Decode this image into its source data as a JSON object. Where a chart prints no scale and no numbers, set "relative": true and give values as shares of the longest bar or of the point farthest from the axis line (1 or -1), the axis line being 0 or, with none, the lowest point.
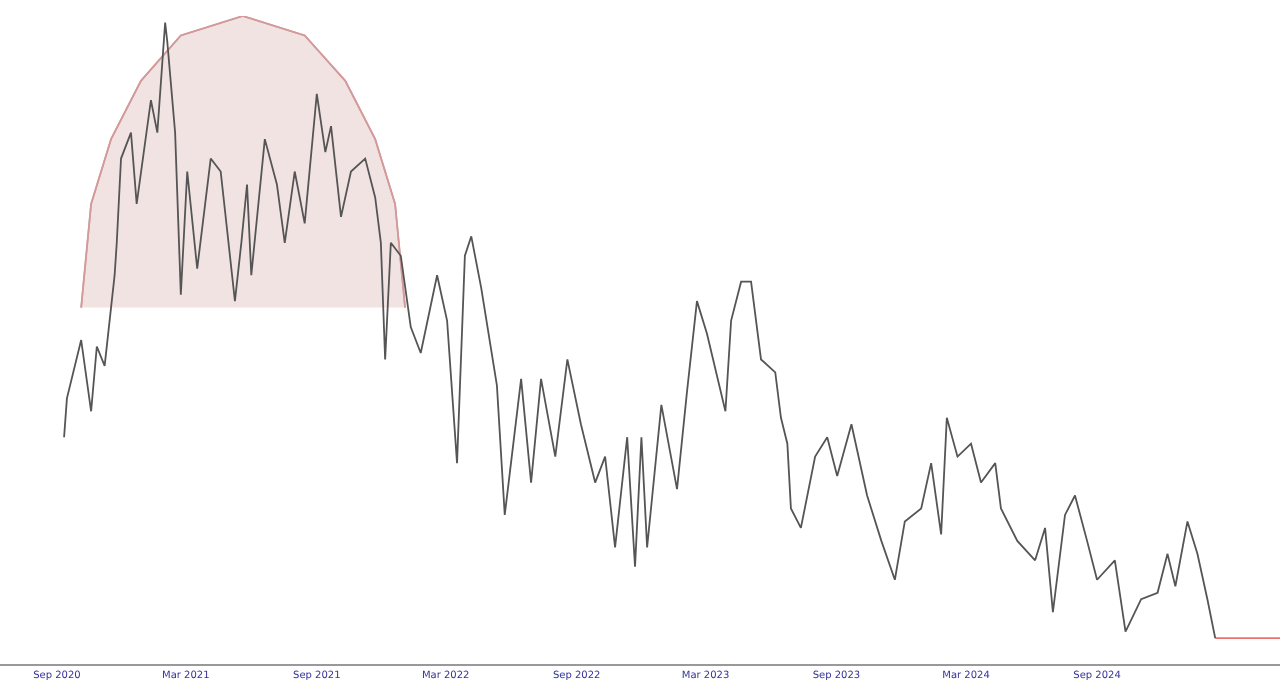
{
  "chart_data": {
    "type": "line",
    "relative": true,
    "xlim": [
      "2020-06-13",
      "2025-05-16"
    ],
    "xticks": [
      {
        "value": "2020-09-01",
        "label": "Sep 2020"
      },
      {
        "value": "2021-03-01",
        "label": "Mar 2021"
      },
      {
        "value": "2021-09-01",
        "label": "Sep 2021"
      },
      {
        "value": "2022-03-01",
        "label": "Mar 2022"
      },
      {
        "value": "2022-09-01",
        "label": "Sep 2022"
      },
      {
        "value": "2023-03-01",
        "label": "Mar 2023"
      },
      {
        "value": "2023-09-01",
        "label": "Sep 2023"
      },
      {
        "value": "2024-03-01",
        "label": "Mar 2024"
      },
      {
        "value": "2024-09-01",
        "label": "Sep 2024"
      }
    ],
    "marker": "none",
    "line_style": "solid",
    "series": [
      {
        "color": "#d29a9a",
        "x": [
          "2020-10-05",
          "2020-10-19",
          "2020-11-16",
          "2020-12-28",
          "2021-02-22",
          "2021-05-20",
          "2021-08-15",
          "2021-10-11",
          "2021-11-22",
          "2021-12-20",
          "2022-01-03"
        ],
        "values": [
          0.55,
          0.71,
          0.81,
          0.9,
          0.97,
          1.0,
          0.97,
          0.9,
          0.81,
          0.71,
          0.55
        ],
        "lower": [
          0.55,
          0.55,
          0.55,
          0.55,
          0.55,
          0.55,
          0.55,
          0.55,
          0.55,
          0.55,
          0.55
        ],
        "upper": [
          0.55,
          0.71,
          0.81,
          0.9,
          0.97,
          1.0,
          0.97,
          0.9,
          0.81,
          0.71,
          0.55
        ]
      },
      {
        "color": "#e8726f",
        "x": [
          "2025-02-14",
          "2025-05-16"
        ],
        "values": [
          0.04,
          0.04
        ]
      },
      {
        "color": "#555555",
        "x": [
          "2020-09-11",
          "2020-09-15",
          "2020-10-05",
          "2020-10-19",
          "2020-10-27",
          "2020-11-07",
          "2020-11-21",
          "2020-11-24",
          "2020-11-30",
          "2020-12-14",
          "2020-12-22",
          "2021-01-11",
          "2021-01-20",
          "2021-01-31",
          "2021-02-03",
          "2021-02-14",
          "2021-02-22",
          "2021-03-03",
          "2021-03-17",
          "2021-04-05",
          "2021-04-19",
          "2021-05-09",
          "2021-05-18",
          "2021-05-26",
          "2021-06-01",
          "2021-06-20",
          "2021-07-07",
          "2021-07-18",
          "2021-08-01",
          "2021-08-15",
          "2021-09-01",
          "2021-09-13",
          "2021-09-21",
          "2021-10-05",
          "2021-10-19",
          "2021-11-08",
          "2021-11-22",
          "2021-11-30",
          "2021-12-06",
          "2021-12-14",
          "2021-12-28",
          "2022-01-11",
          "2022-01-25",
          "2022-02-17",
          "2022-03-03",
          "2022-03-17",
          "2022-03-28",
          "2022-04-06",
          "2022-04-20",
          "2022-05-12",
          "2022-05-23",
          "2022-06-15",
          "2022-06-29",
          "2022-07-13",
          "2022-08-02",
          "2022-08-19",
          "2022-09-07",
          "2022-09-27",
          "2022-10-11",
          "2022-10-25",
          "2022-11-11",
          "2022-11-22",
          "2022-12-01",
          "2022-12-09",
          "2022-12-29",
          "2023-01-20",
          "2023-02-03",
          "2023-02-17",
          "2023-03-03",
          "2023-03-29",
          "2023-04-06",
          "2023-04-20",
          "2023-05-04",
          "2023-05-18",
          "2023-06-07",
          "2023-06-15",
          "2023-06-24",
          "2023-06-29",
          "2023-07-13",
          "2023-08-02",
          "2023-08-19",
          "2023-09-02",
          "2023-09-22",
          "2023-10-14",
          "2023-11-03",
          "2023-11-22",
          "2023-12-06",
          "2023-12-29",
          "2024-01-12",
          "2024-01-26",
          "2024-02-03",
          "2024-02-18",
          "2024-03-08",
          "2024-03-22",
          "2024-04-11",
          "2024-04-19",
          "2024-05-12",
          "2024-06-06",
          "2024-06-20",
          "2024-07-01",
          "2024-07-18",
          "2024-08-01",
          "2024-08-18",
          "2024-09-01",
          "2024-09-26",
          "2024-10-11",
          "2024-11-02",
          "2024-11-25",
          "2024-12-09",
          "2024-12-20",
          "2025-01-06",
          "2025-01-20",
          "2025-02-03",
          "2025-02-14"
        ],
        "values": [
          0.35,
          0.41,
          0.5,
          0.39,
          0.49,
          0.46,
          0.6,
          0.65,
          0.78,
          0.82,
          0.71,
          0.87,
          0.82,
          0.99,
          0.96,
          0.82,
          0.57,
          0.76,
          0.61,
          0.78,
          0.76,
          0.56,
          0.65,
          0.74,
          0.6,
          0.81,
          0.74,
          0.65,
          0.76,
          0.68,
          0.88,
          0.79,
          0.83,
          0.69,
          0.76,
          0.78,
          0.72,
          0.65,
          0.47,
          0.65,
          0.63,
          0.52,
          0.48,
          0.6,
          0.53,
          0.31,
          0.63,
          0.66,
          0.58,
          0.43,
          0.23,
          0.44,
          0.28,
          0.44,
          0.32,
          0.47,
          0.37,
          0.28,
          0.32,
          0.18,
          0.35,
          0.15,
          0.35,
          0.18,
          0.4,
          0.27,
          0.42,
          0.56,
          0.51,
          0.39,
          0.53,
          0.59,
          0.59,
          0.47,
          0.45,
          0.38,
          0.34,
          0.24,
          0.21,
          0.32,
          0.35,
          0.29,
          0.37,
          0.26,
          0.19,
          0.13,
          0.22,
          0.24,
          0.31,
          0.2,
          0.38,
          0.32,
          0.34,
          0.28,
          0.31,
          0.24,
          0.19,
          0.16,
          0.21,
          0.08,
          0.23,
          0.26,
          0.19,
          0.13,
          0.16,
          0.05,
          0.1,
          0.11,
          0.17,
          0.12,
          0.22,
          0.17,
          0.1,
          0.04
        ]
      }
    ]
  }
}
